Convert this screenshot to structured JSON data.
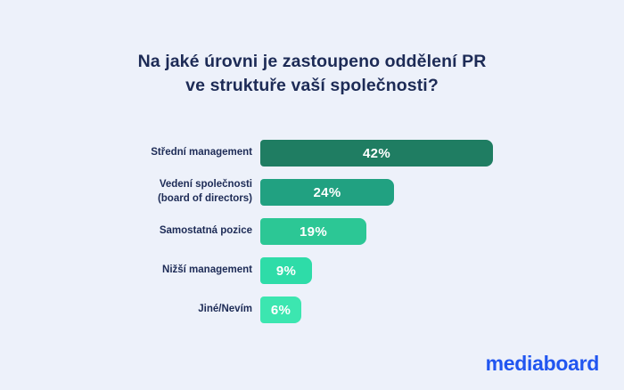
{
  "page": {
    "background_color": "#edf1fa",
    "text_color": "#1d2b56"
  },
  "chart_data": {
    "type": "bar",
    "orientation": "horizontal",
    "title": "Na jaké úrovni je zastoupeno oddělení PR ve struktuře vaší společnosti?",
    "title_lines": {
      "line1": "Na jaké úrovni je zastoupeno oddělení PR",
      "line2": "ve struktuře vaší společnosti?"
    },
    "categories": [
      "Střední management",
      "Vedení společnosti (board of directors)",
      "Samostatná pozice",
      "Nižší management",
      "Jiné/Nevím"
    ],
    "values": [
      42,
      24,
      19,
      9,
      6
    ],
    "value_labels": [
      "42%",
      "24%",
      "19%",
      "9%",
      "6%"
    ],
    "bar_colors": [
      "#1f7d62",
      "#21a181",
      "#2cc795",
      "#2edca8",
      "#3ce6b0"
    ],
    "xlim": [
      0,
      42
    ],
    "grid": false,
    "legend": "none",
    "value_label_position": "center",
    "category_label_position": "left"
  },
  "footer": {
    "logo_text": "mediaboard",
    "logo_color": "#2156f0"
  }
}
